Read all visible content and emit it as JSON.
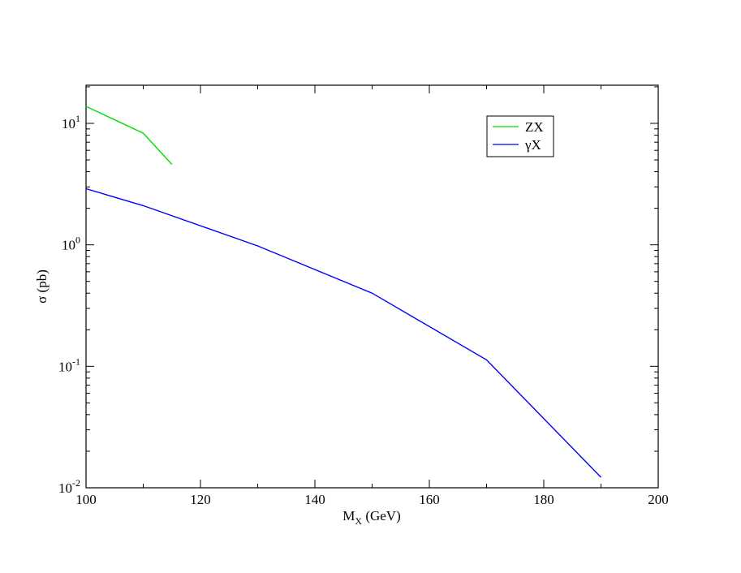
{
  "chart_data": {
    "type": "line",
    "title": "",
    "xlabel": {
      "main": "M",
      "sub": "X",
      "suffix": " (GeV)"
    },
    "ylabel": "σ (pb)",
    "xlim": [
      100,
      200
    ],
    "ylim": [
      0.01,
      20
    ],
    "yscale": "log",
    "grid": false,
    "legend_position": "top-right",
    "x_ticks": [
      100,
      120,
      140,
      160,
      180,
      200
    ],
    "x_minor_ticks": [
      110,
      130,
      150,
      170,
      190
    ],
    "y_ticks": [
      {
        "value": 10,
        "base": "10",
        "exp": "1"
      },
      {
        "value": 1,
        "base": "10",
        "exp": "0"
      },
      {
        "value": 0.1,
        "base": "10",
        "exp": "-1"
      },
      {
        "value": 0.01,
        "base": "10",
        "exp": "-2"
      }
    ],
    "series": [
      {
        "name": "ZX",
        "color": "#00e000",
        "x": [
          100,
          110,
          115
        ],
        "y": [
          13.8,
          8.3,
          4.6
        ]
      },
      {
        "name": "γX",
        "color": "#0000ff",
        "x": [
          100,
          110,
          130,
          150,
          170,
          190
        ],
        "y": [
          2.9,
          2.1,
          0.98,
          0.4,
          0.113,
          0.0122
        ]
      }
    ]
  }
}
